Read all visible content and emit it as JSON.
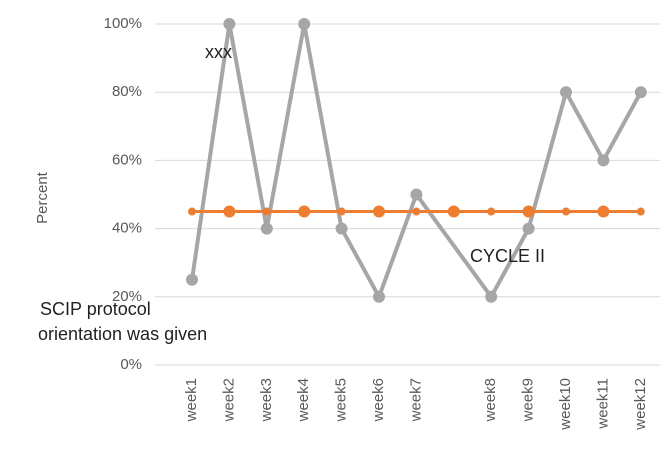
{
  "chart_data": {
    "type": "line",
    "y_label": "Percent",
    "categories": [
      "week1",
      "week2",
      "week3",
      "week4",
      "week5",
      "week6",
      "week7",
      null,
      "week8",
      "week9",
      "week10",
      "week11",
      "week12"
    ],
    "series": [
      {
        "color": "#a6a6a6",
        "values": [
          25,
          100,
          40,
          100,
          40,
          20,
          50,
          null,
          20,
          40,
          80,
          60,
          80
        ]
      },
      {
        "color": "#ed7d31",
        "values": [
          45,
          45,
          45,
          45,
          45,
          45,
          45,
          45,
          45,
          45,
          45,
          45,
          45
        ]
      }
    ],
    "connect_gaps": true,
    "ylim": [
      0,
      100
    ],
    "yticks": [
      {
        "value": 0,
        "label": "0%"
      },
      {
        "value": 20,
        "label": "20%"
      },
      {
        "value": 40,
        "label": "40%"
      },
      {
        "value": 60,
        "label": "60%"
      },
      {
        "value": 80,
        "label": "80%"
      },
      {
        "value": 100,
        "label": "100%"
      }
    ],
    "grid": true,
    "annotations": [
      "xxx",
      "CYCLE II",
      "SCIP protocol",
      "orientation was given"
    ]
  }
}
